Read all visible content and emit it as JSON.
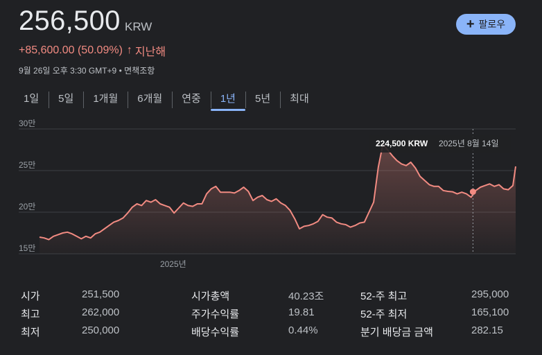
{
  "header": {
    "price": "256,500",
    "currency": "KRW",
    "change": "+85,600.00 (50.09%)",
    "change_period": "지난해",
    "timestamp": "9월 26일 오후 3:30 GMT+9",
    "disclaimer": "면책조항",
    "follow_label": "팔로우",
    "change_color": "#f28b82"
  },
  "tabs": [
    {
      "label": "1일"
    },
    {
      "label": "5일"
    },
    {
      "label": "1개월"
    },
    {
      "label": "6개월"
    },
    {
      "label": "연중"
    },
    {
      "label": "1년",
      "active": true
    },
    {
      "label": "5년"
    },
    {
      "label": "최대"
    }
  ],
  "tooltip": {
    "price": "224,500 KRW",
    "date": "2025년 8월 14일"
  },
  "chart_data": {
    "type": "area",
    "ylim": [
      150000,
      300000
    ],
    "y_ticks": [
      {
        "value": 300000,
        "label": "30만"
      },
      {
        "value": 250000,
        "label": "25만"
      },
      {
        "value": 200000,
        "label": "20만"
      },
      {
        "value": 150000,
        "label": "15만"
      }
    ],
    "x_ticks": [
      {
        "value": 14.4,
        "label": "2025년"
      }
    ],
    "x_range": [
      0,
      51.3
    ],
    "line_color": "#f28b82",
    "series": [
      {
        "x": [
          0,
          0.5,
          1,
          1.5,
          2,
          2.5,
          3,
          3.5,
          4,
          4.5,
          5,
          5.5,
          6,
          6.5,
          7,
          7.5,
          8,
          8.5,
          9,
          9.5,
          10,
          10.5,
          11,
          11.5,
          12,
          12.5,
          13,
          13.5,
          14,
          14.5,
          15,
          15.5,
          16,
          16.5,
          17,
          17.5,
          18,
          18.5,
          19,
          19.5,
          20,
          20.5,
          21,
          21.5,
          22,
          22.5,
          23,
          23.5,
          24,
          24.5,
          25,
          25.5,
          26,
          26.5,
          27,
          27.5,
          28,
          28.5,
          29,
          29.5,
          30,
          30.5,
          31,
          31.5,
          32,
          32.5,
          33,
          33.5,
          34,
          34.5,
          35,
          35.5,
          36,
          36.5,
          37,
          37.5,
          38,
          38.5,
          39,
          39.5,
          40,
          40.5,
          41,
          41.5,
          42,
          42.5,
          43,
          43.5,
          44,
          44.5,
          45,
          45.5,
          46,
          46.5,
          47,
          47.5,
          48,
          48.5,
          49,
          49.5,
          50,
          50.5,
          51,
          51.3
        ],
        "values": [
          170000,
          169000,
          167000,
          171000,
          173000,
          175000,
          176000,
          174000,
          171000,
          168000,
          171000,
          169000,
          174000,
          176000,
          180000,
          184000,
          188000,
          190000,
          193000,
          199000,
          206000,
          210000,
          208000,
          214000,
          212000,
          215000,
          210000,
          208000,
          206000,
          199000,
          205000,
          211000,
          208000,
          207000,
          210000,
          210000,
          222000,
          228000,
          231000,
          224000,
          224000,
          224000,
          223000,
          226000,
          230000,
          225000,
          214000,
          218000,
          220000,
          215000,
          213000,
          216000,
          211000,
          208000,
          202000,
          192000,
          180000,
          183000,
          184000,
          186000,
          189000,
          197000,
          194000,
          193000,
          188000,
          186000,
          185000,
          182000,
          184000,
          187000,
          188000,
          200000,
          212000,
          254000,
          282000,
          275000,
          268000,
          262000,
          258000,
          256000,
          260000,
          253000,
          243000,
          238000,
          233000,
          231000,
          231000,
          226000,
          225000,
          224500,
          222000,
          224000,
          222000,
          218000,
          226000,
          230000,
          232000,
          234000,
          231000,
          233000,
          228000,
          227000,
          232000,
          255000
        ]
      }
    ],
    "hover_point": {
      "x": 46.7,
      "y": 224500
    }
  },
  "stats": {
    "open_label": "시가",
    "open_value": "251,500",
    "high_label": "최고",
    "high_value": "262,000",
    "low_label": "최저",
    "low_value": "250,000",
    "mktcap_label": "시가총액",
    "mktcap_value": "40.23조",
    "pe_label": "주가수익률",
    "pe_value": "19.81",
    "div_label": "배당수익률",
    "div_value": "0.44%",
    "high52_label": "52-주 최고",
    "high52_value": "295,000",
    "low52_label": "52-주 최저",
    "low52_value": "165,100",
    "qdiv_label": "분기 배당금 금액",
    "qdiv_value": "282.15"
  }
}
